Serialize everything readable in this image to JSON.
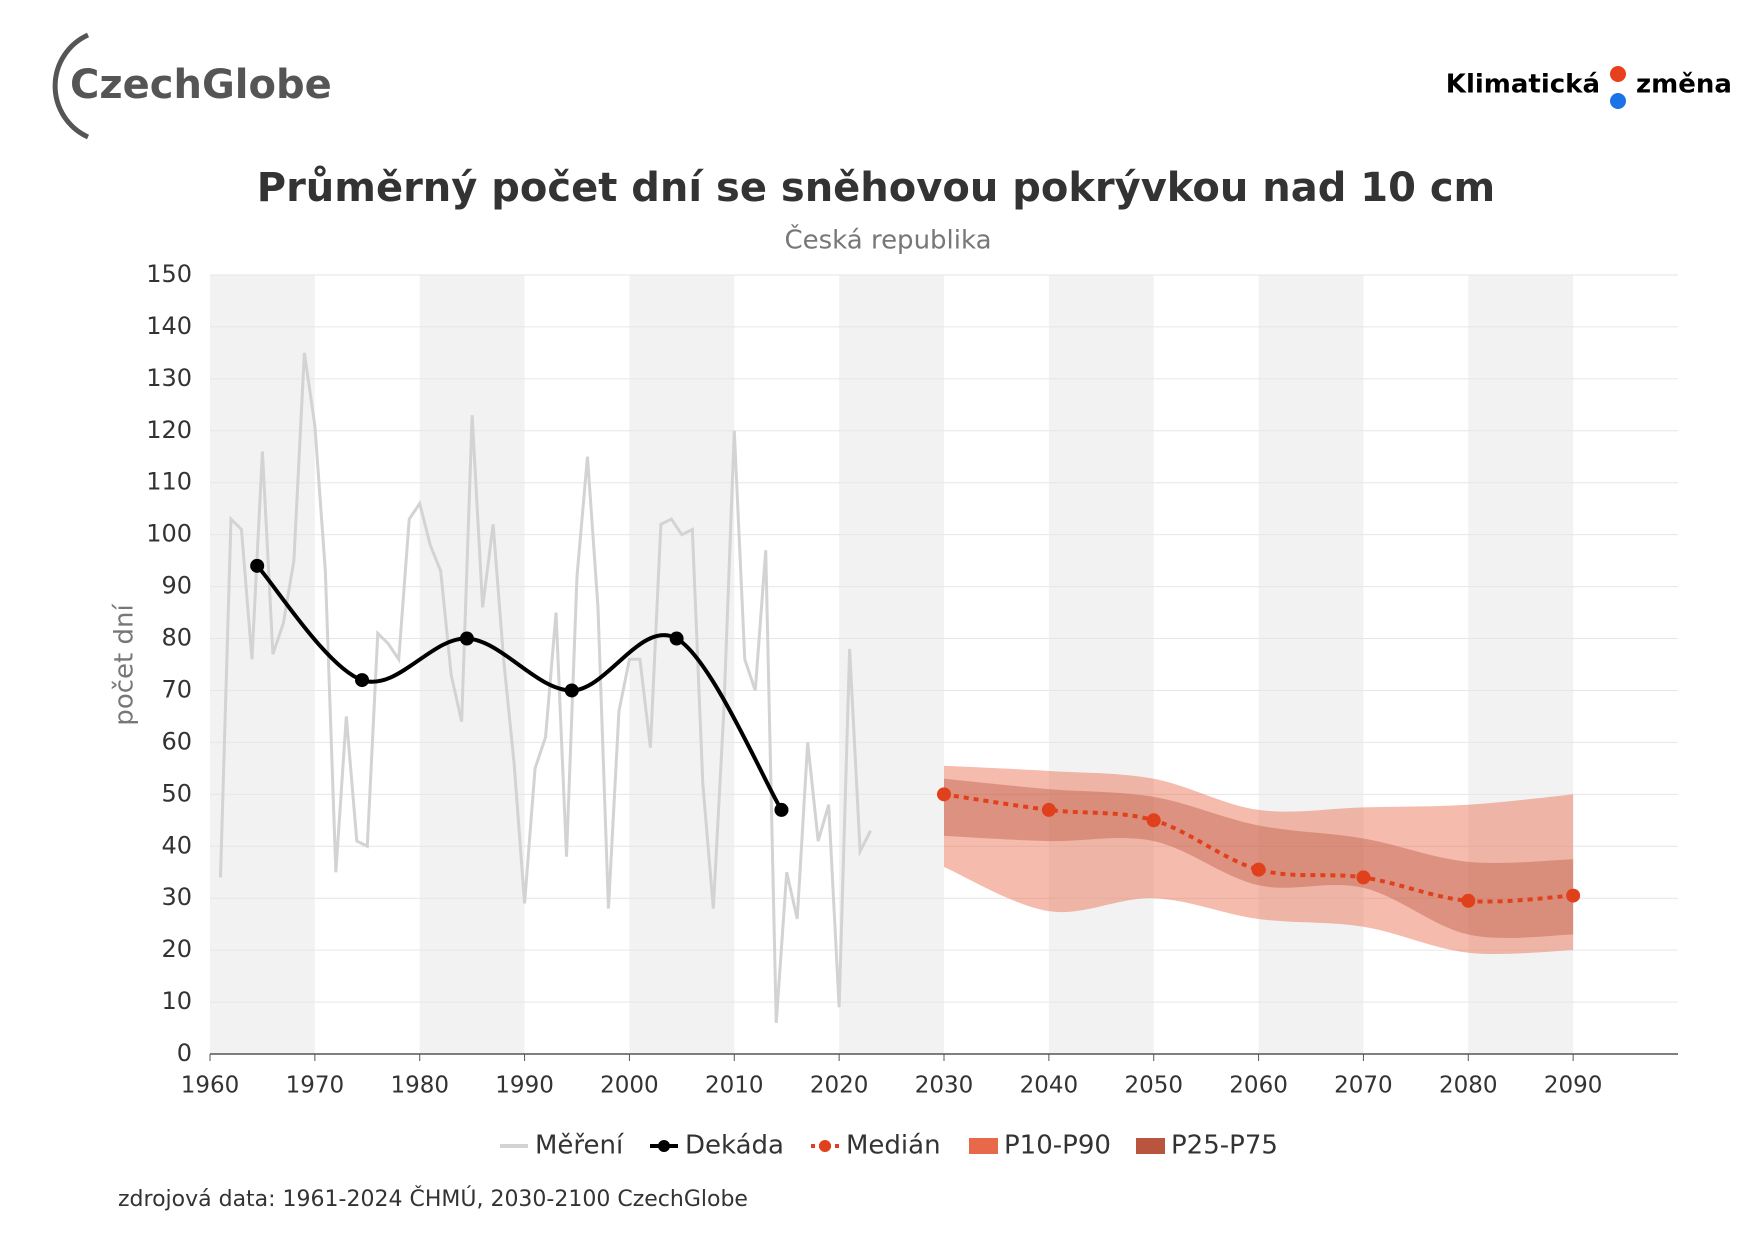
{
  "header": {
    "logo": "CzechGlobe",
    "brand_left": "Klimatická",
    "brand_right": "změna"
  },
  "chart_data": {
    "type": "line",
    "title": "Průměrný počet dní se sněhovou pokrývkou nad 10 cm",
    "subtitle": "Česká republika",
    "y_label": "počet dní",
    "xlim": [
      1960,
      2100
    ],
    "ylim": [
      0,
      150
    ],
    "xticks": [
      1960,
      1970,
      1980,
      1990,
      2000,
      2010,
      2020,
      2030,
      2040,
      2050,
      2060,
      2070,
      2080,
      2090
    ],
    "yticks": [
      0,
      10,
      20,
      30,
      40,
      50,
      60,
      70,
      80,
      90,
      100,
      110,
      120,
      130,
      140,
      150
    ],
    "grid": true,
    "legend": "bottom",
    "series": [
      {
        "name": "Měření",
        "color": "#d3d3d3",
        "x": [
          1961,
          1962,
          1963,
          1964,
          1965,
          1966,
          1967,
          1968,
          1969,
          1970,
          1971,
          1972,
          1973,
          1974,
          1975,
          1976,
          1977,
          1978,
          1979,
          1980,
          1981,
          1982,
          1983,
          1984,
          1985,
          1986,
          1987,
          1988,
          1989,
          1990,
          1991,
          1992,
          1993,
          1994,
          1995,
          1996,
          1997,
          1998,
          1999,
          2000,
          2001,
          2002,
          2003,
          2004,
          2005,
          2006,
          2007,
          2008,
          2009,
          2010,
          2011,
          2012,
          2013,
          2014,
          2015,
          2016,
          2017,
          2018,
          2019,
          2020,
          2021,
          2022,
          2023
        ],
        "values": [
          34,
          103,
          101,
          76,
          116,
          77,
          83,
          95,
          135,
          121,
          93,
          35,
          65,
          41,
          40,
          81,
          79,
          76,
          103,
          106,
          98,
          93,
          73,
          64,
          123,
          86,
          102,
          76,
          56,
          29,
          55,
          61,
          85,
          38,
          92,
          115,
          86,
          28,
          66,
          76,
          76,
          59,
          102,
          103,
          100,
          101,
          52,
          28,
          66,
          120,
          76,
          70,
          97,
          6,
          35,
          26,
          60,
          41,
          48,
          9,
          78,
          39,
          43
        ]
      },
      {
        "name": "Dekáda",
        "color": "#000000",
        "smooth": true,
        "markers": true,
        "x": [
          1964.5,
          1974.5,
          1984.5,
          1994.5,
          2004.5,
          2014.5
        ],
        "values": [
          94,
          72,
          80,
          70,
          80,
          47
        ]
      },
      {
        "name": "Medián",
        "color": "#e0401c",
        "dashed": true,
        "smooth": true,
        "markers": true,
        "x": [
          2030,
          2040,
          2050,
          2060,
          2070,
          2080,
          2090
        ],
        "values": [
          50,
          47,
          45,
          35.5,
          34,
          29.5,
          30.5
        ]
      }
    ],
    "bands": [
      {
        "name": "P10-P90",
        "color": "#e8694a",
        "x": [
          2030,
          2040,
          2050,
          2060,
          2070,
          2080,
          2090
        ],
        "lower": [
          36,
          27.5,
          30,
          26,
          24.5,
          19.5,
          20
        ],
        "upper": [
          55.5,
          54.5,
          53,
          47,
          47.5,
          48,
          50
        ]
      },
      {
        "name": "P25-P75",
        "color": "#b9553f",
        "x": [
          2030,
          2040,
          2050,
          2060,
          2070,
          2080,
          2090
        ],
        "lower": [
          42,
          41,
          41,
          32.5,
          32,
          23,
          23
        ],
        "upper": [
          53,
          51,
          49.5,
          44,
          41.5,
          37,
          37.5
        ]
      }
    ],
    "source": "zdrojová data: 1961-2024 ČHMÚ, 2030-2100 CzechGlobe"
  }
}
